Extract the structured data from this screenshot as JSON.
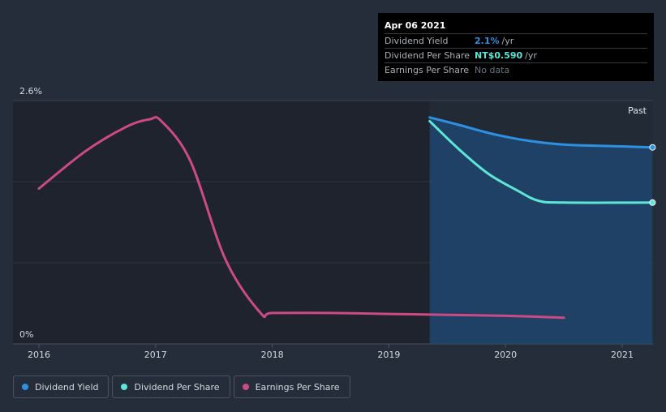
{
  "chart_data": {
    "type": "line",
    "x_ticks": [
      "2016",
      "2017",
      "2018",
      "2019",
      "2020",
      "2021"
    ],
    "y_top_label": "2.6%",
    "y_bottom_label": "0%",
    "ylim": [
      0,
      2.6
    ],
    "past_label": "Past",
    "series": [
      {
        "name": "Dividend Yield",
        "color": "#2d91e3",
        "area": true,
        "points": [
          [
            2019.35,
            2.42
          ],
          [
            2019.6,
            2.34
          ],
          [
            2019.9,
            2.24
          ],
          [
            2020.2,
            2.17
          ],
          [
            2020.5,
            2.13
          ],
          [
            2021.0,
            2.11
          ],
          [
            2021.26,
            2.1
          ]
        ]
      },
      {
        "name": "Dividend Per Share",
        "color": "#5de5d8",
        "area": false,
        "points": [
          [
            2019.35,
            2.38
          ],
          [
            2019.6,
            2.08
          ],
          [
            2019.85,
            1.82
          ],
          [
            2020.1,
            1.64
          ],
          [
            2020.28,
            1.53
          ],
          [
            2020.5,
            1.51
          ],
          [
            2021.26,
            1.51
          ]
        ]
      },
      {
        "name": "Earnings Per Share",
        "color": "#cc4a86",
        "area": false,
        "points": [
          [
            2016.0,
            1.66
          ],
          [
            2016.4,
            2.06
          ],
          [
            2016.75,
            2.32
          ],
          [
            2016.95,
            2.4
          ],
          [
            2017.05,
            2.38
          ],
          [
            2017.3,
            1.95
          ],
          [
            2017.6,
            0.9
          ],
          [
            2017.9,
            0.33
          ],
          [
            2018.0,
            0.33
          ],
          [
            2018.5,
            0.33
          ],
          [
            2019.0,
            0.32
          ],
          [
            2019.5,
            0.31
          ],
          [
            2020.0,
            0.3
          ],
          [
            2020.5,
            0.28
          ]
        ]
      }
    ]
  },
  "tooltip": {
    "date": "Apr 06 2021",
    "rows": [
      {
        "label": "Dividend Yield",
        "value": "2.1%",
        "unit": "/yr",
        "color": "#2d91e3"
      },
      {
        "label": "Dividend Per Share",
        "value": "NT$0.590",
        "unit": "/yr",
        "color": "#5de5d8"
      },
      {
        "label": "Earnings Per Share",
        "value": "No data",
        "unit": "",
        "color": "#6b7280"
      }
    ]
  },
  "legend": [
    {
      "label": "Dividend Yield",
      "color": "#2d91e3"
    },
    {
      "label": "Dividend Per Share",
      "color": "#5de5d8"
    },
    {
      "label": "Earnings Per Share",
      "color": "#cc4a86"
    }
  ]
}
